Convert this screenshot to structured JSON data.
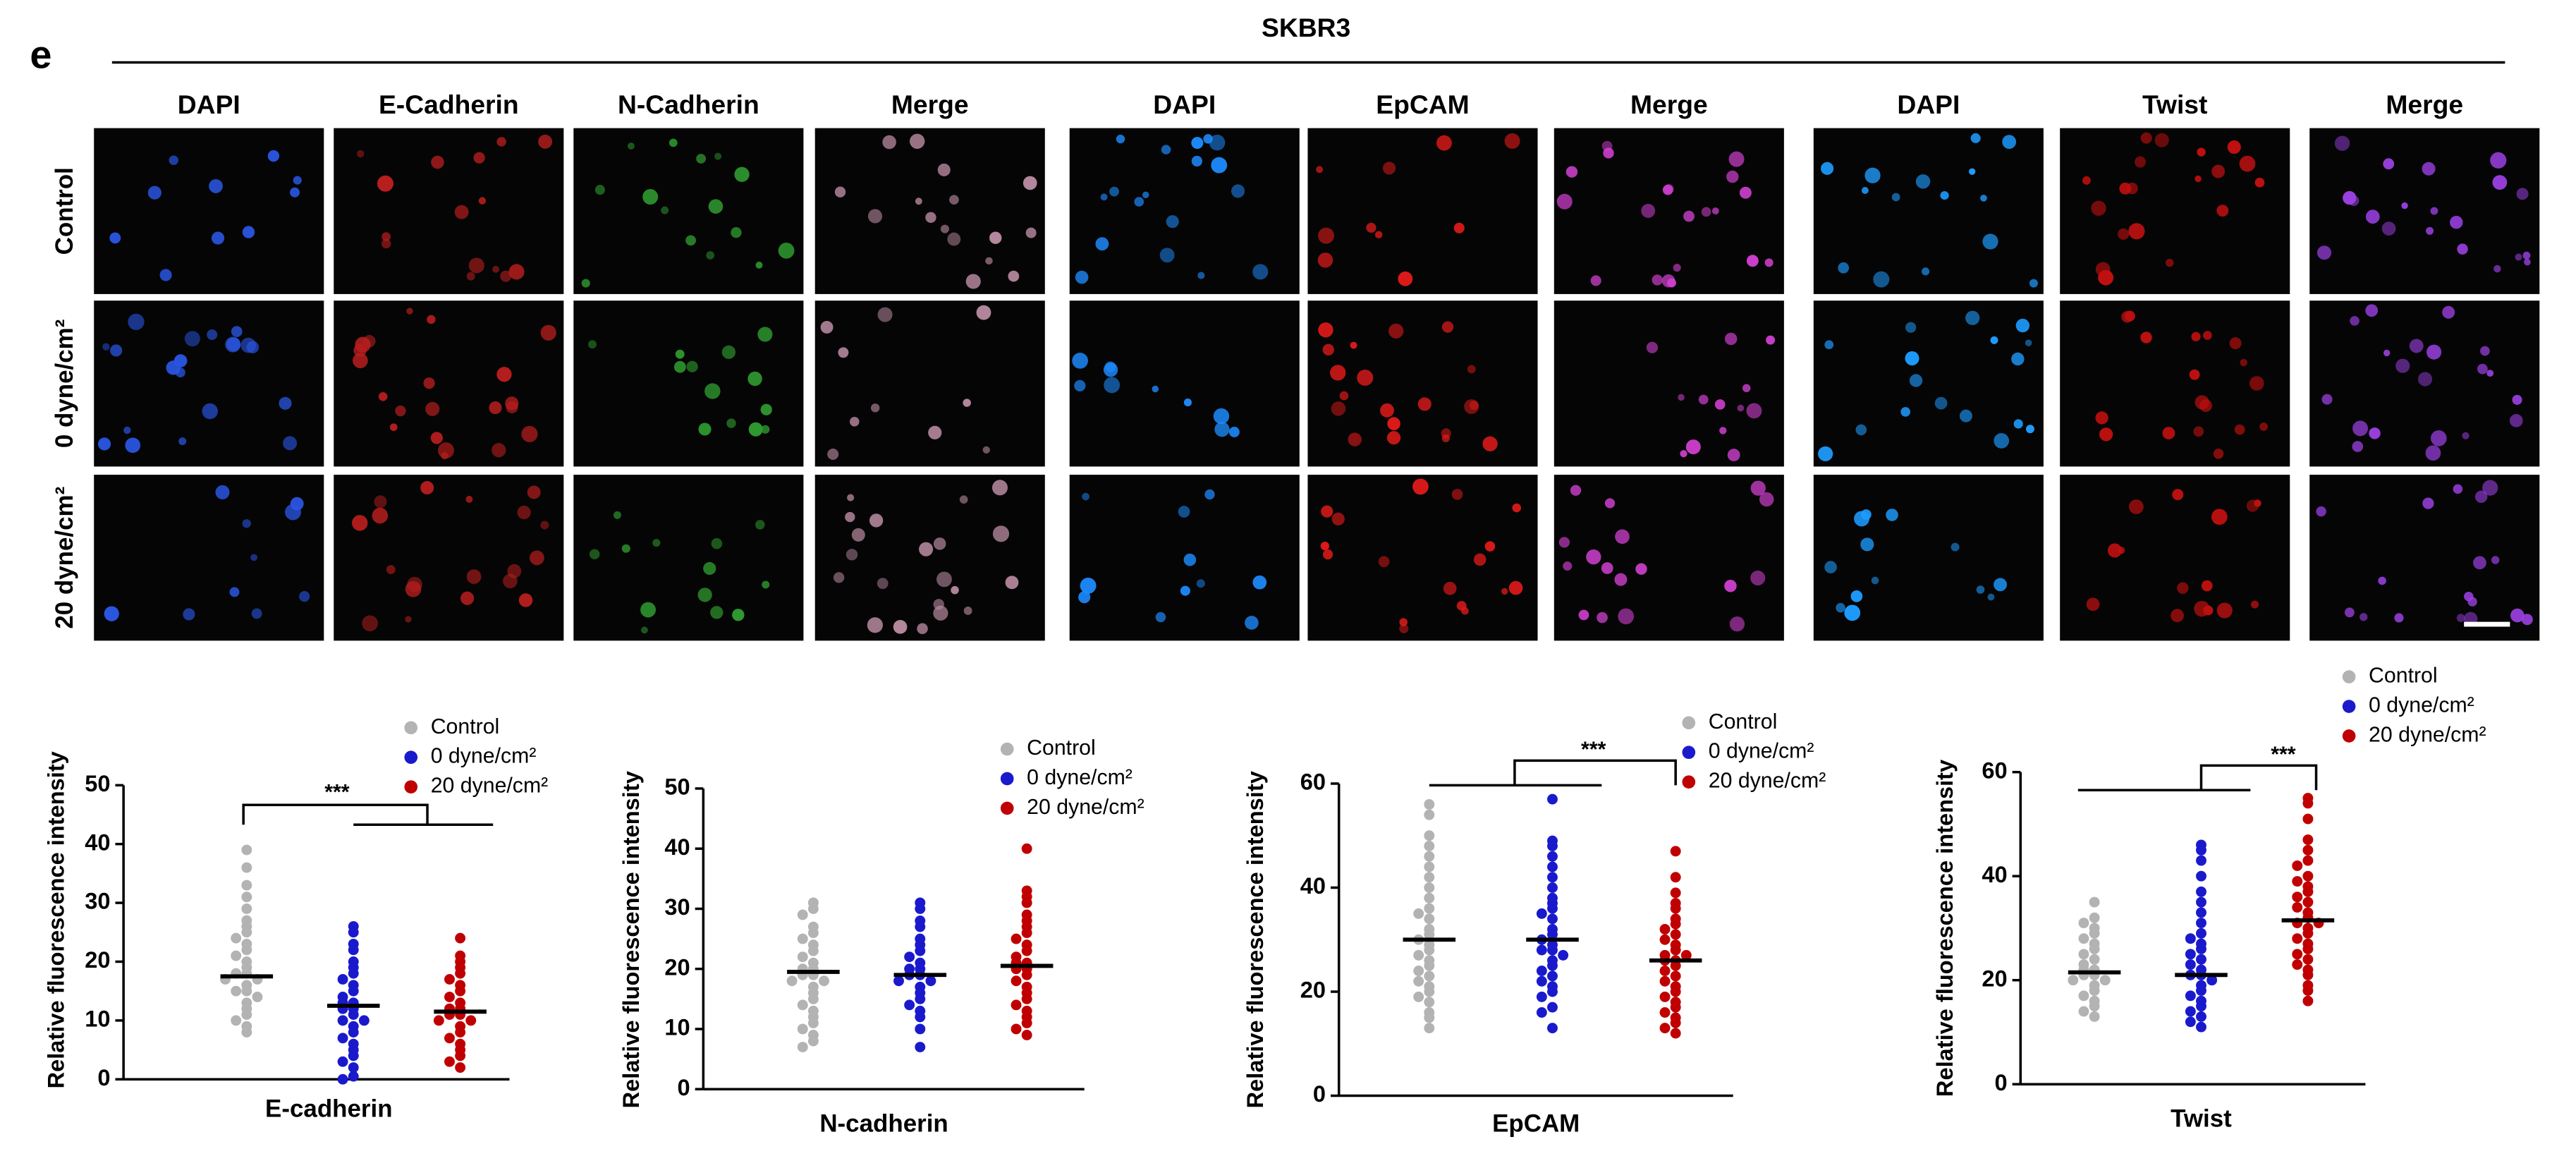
{
  "panel_label": "e",
  "title": "SKBR3",
  "image_groups": [
    {
      "headers": [
        "DAPI",
        "E-Cadherin",
        "N-Cadherin",
        "Merge"
      ]
    },
    {
      "headers": [
        "DAPI",
        "EpCAM",
        "Merge"
      ]
    },
    {
      "headers": [
        "DAPI",
        "Twist",
        "Merge"
      ]
    }
  ],
  "row_labels": [
    "Control",
    "0 dyne/cm²",
    "20 dyne/cm²"
  ],
  "chart_data": [
    {
      "type": "dot",
      "ylabel": "Relative fluorescence intensity",
      "xlabel": "E-cadherin",
      "annotation": "***",
      "ylim": [
        0,
        50
      ],
      "yticks": [
        0,
        10,
        20,
        30,
        40,
        50
      ],
      "series": [
        {
          "name": "Control",
          "color": "#b3b3b3",
          "mean": 17.5,
          "values": [
            39,
            36,
            33,
            31,
            29,
            27,
            26,
            25,
            24,
            23,
            22,
            21,
            20,
            19,
            18,
            18,
            17,
            17,
            16,
            15,
            15,
            14,
            13,
            12,
            11,
            10,
            9,
            8
          ]
        },
        {
          "name": "0 dyne/cm²",
          "color": "#1a1acc",
          "mean": 12.5,
          "values": [
            26,
            25,
            23,
            22,
            20,
            19,
            18,
            17,
            16,
            15,
            14,
            13,
            13,
            12,
            12,
            11,
            10,
            10,
            9,
            8,
            7,
            6,
            5,
            4,
            3,
            2,
            0.5,
            0
          ]
        },
        {
          "name": "20 dyne/cm²",
          "color": "#c00000",
          "mean": 11.5,
          "values": [
            24,
            21,
            20,
            19,
            18,
            17,
            16,
            15,
            14,
            13,
            12,
            12,
            11,
            11,
            10,
            10,
            9,
            8,
            7,
            6,
            5,
            4,
            3,
            2
          ]
        }
      ]
    },
    {
      "type": "dot",
      "ylabel": "Relative fluorescence intensity",
      "xlabel": "N-cadherin",
      "ylim": [
        0,
        50
      ],
      "yticks": [
        0,
        10,
        20,
        30,
        40,
        50
      ],
      "series": [
        {
          "name": "Control",
          "color": "#b3b3b3",
          "mean": 19.5,
          "values": [
            31,
            30,
            29,
            27,
            26,
            25,
            24,
            23,
            22,
            21,
            20,
            20,
            19,
            19,
            18,
            18,
            17,
            16,
            15,
            14,
            13,
            12,
            11,
            10,
            9,
            8,
            7
          ]
        },
        {
          "name": "0 dyne/cm²",
          "color": "#1a1acc",
          "mean": 19,
          "values": [
            31,
            30,
            28,
            27,
            25,
            24,
            23,
            22,
            21,
            20,
            20,
            19,
            19,
            18,
            18,
            17,
            16,
            15,
            14,
            13,
            12,
            10,
            7
          ]
        },
        {
          "name": "20 dyne/cm²",
          "color": "#c00000",
          "mean": 20.5,
          "values": [
            40,
            33,
            32,
            31,
            29,
            28,
            27,
            26,
            25,
            24,
            23,
            22,
            21,
            21,
            20,
            20,
            19,
            18,
            17,
            16,
            15,
            14,
            13,
            12,
            11,
            10,
            9
          ]
        }
      ]
    },
    {
      "type": "dot",
      "ylabel": "Relative fluorescence intensity",
      "xlabel": "EpCAM",
      "annotation": "***",
      "ylim": [
        0,
        60
      ],
      "yticks": [
        0,
        20,
        40,
        60
      ],
      "series": [
        {
          "name": "Control",
          "color": "#b3b3b3",
          "mean": 30,
          "values": [
            56,
            54,
            50,
            48,
            46,
            44,
            42,
            40,
            38,
            36,
            35,
            34,
            32,
            31,
            30,
            29,
            28,
            27,
            26,
            25,
            24,
            23,
            22,
            21,
            20,
            19,
            18,
            16,
            15,
            13
          ]
        },
        {
          "name": "0 dyne/cm²",
          "color": "#1a1acc",
          "mean": 30,
          "values": [
            57,
            49,
            48,
            46,
            44,
            42,
            40,
            38,
            37,
            36,
            35,
            34,
            32,
            31,
            30,
            29,
            28,
            28,
            27,
            26,
            25,
            24,
            23,
            22,
            21,
            20,
            19,
            17,
            16,
            13
          ]
        },
        {
          "name": "20 dyne/cm²",
          "color": "#c00000",
          "mean": 26,
          "values": [
            47,
            42,
            39,
            37,
            36,
            34,
            33,
            32,
            31,
            30,
            29,
            28,
            27,
            27,
            26,
            26,
            25,
            24,
            23,
            22,
            21,
            20,
            19,
            18,
            17,
            16,
            15,
            14,
            13,
            12
          ]
        }
      ]
    },
    {
      "type": "dot",
      "ylabel": "Relative fluorescence intensity",
      "xlabel": "Twist",
      "annotation": "***",
      "ylim": [
        0,
        60
      ],
      "yticks": [
        0,
        20,
        40,
        60
      ],
      "series": [
        {
          "name": "Control",
          "color": "#b3b3b3",
          "mean": 21.5,
          "values": [
            35,
            32,
            31,
            30,
            29,
            28,
            27,
            26,
            25,
            24,
            23,
            22,
            22,
            21,
            21,
            20,
            20,
            19,
            18,
            17,
            16,
            15,
            14,
            13
          ]
        },
        {
          "name": "0 dyne/cm²",
          "color": "#1a1acc",
          "mean": 21,
          "values": [
            46,
            45,
            43,
            40,
            37,
            35,
            33,
            31,
            29,
            28,
            27,
            26,
            25,
            24,
            23,
            22,
            21,
            21,
            20,
            19,
            18,
            17,
            16,
            15,
            14,
            13,
            12,
            11
          ]
        },
        {
          "name": "20 dyne/cm²",
          "color": "#c00000",
          "mean": 31.5,
          "values": [
            55,
            54,
            51,
            47,
            45,
            43,
            42,
            40,
            39,
            38,
            37,
            36,
            35,
            34,
            33,
            32,
            31,
            31,
            30,
            29,
            28,
            27,
            26,
            25,
            24,
            23,
            22,
            21,
            19,
            18,
            16
          ]
        }
      ]
    }
  ]
}
